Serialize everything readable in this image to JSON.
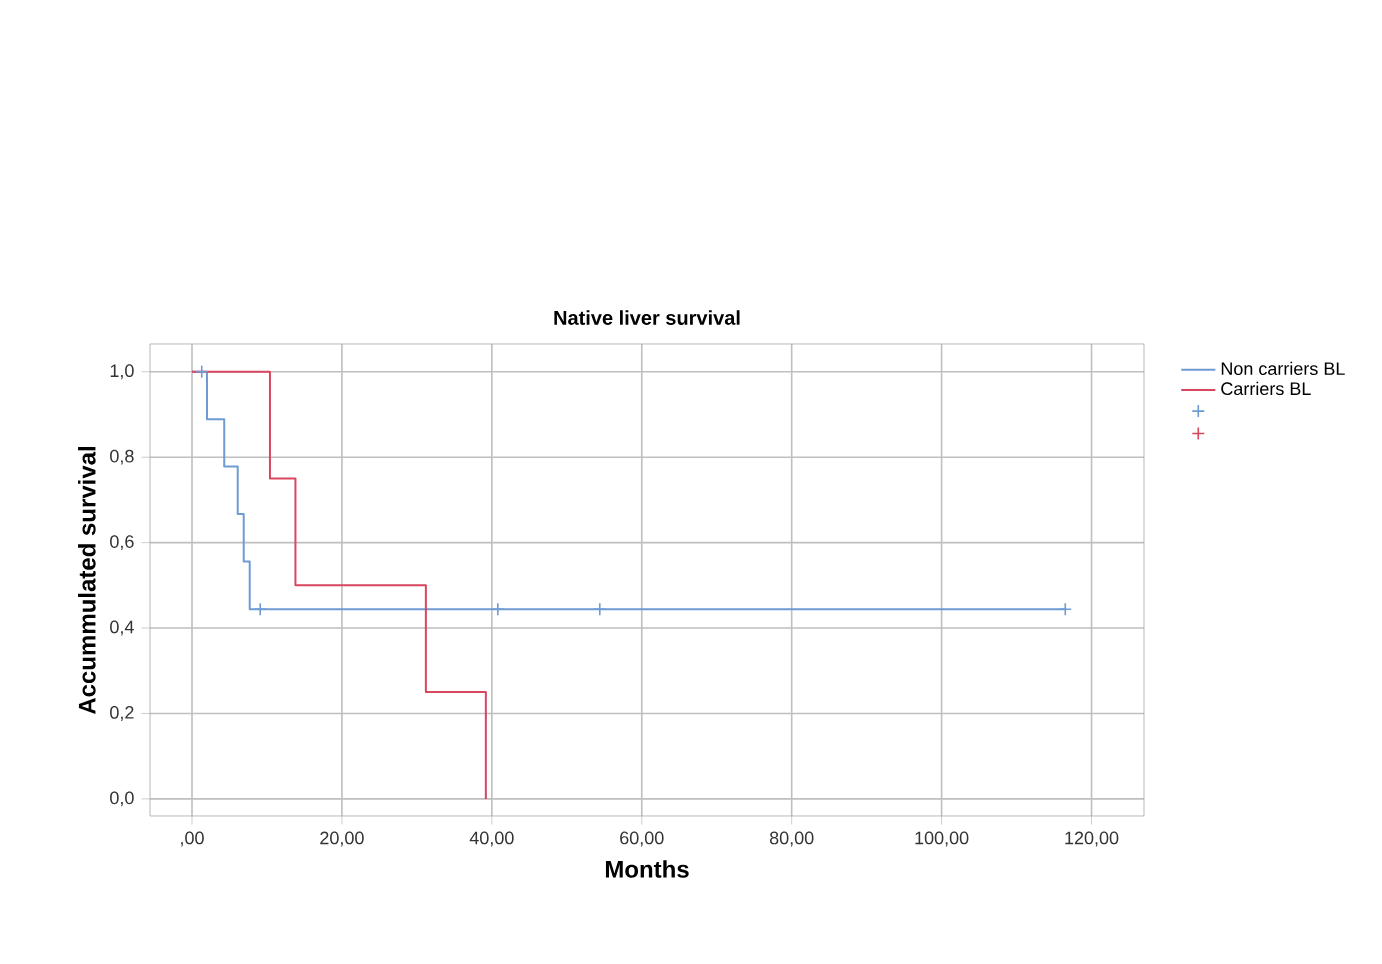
{
  "chart_data": {
    "type": "step",
    "title": "Native liver survival",
    "xlabel": "Months",
    "ylabel": "Accummulated survival",
    "series": [
      {
        "name": "Non carriers BL",
        "color": "#6f9bd3",
        "x": [
          0,
          2,
          4.3,
          6.1,
          6.9,
          7.7,
          116.5
        ],
        "values": [
          1,
          0.889,
          0.778,
          0.667,
          0.556,
          0.444,
          0.444
        ]
      },
      {
        "name": "Carriers BL",
        "color": "#d9465f",
        "x": [
          0,
          10.4,
          13.8,
          31.2,
          39.2
        ],
        "values": [
          1,
          0.75,
          0.5,
          0.25,
          0
        ]
      },
      {
        "type": "scatter",
        "marker": "cross",
        "color": "#6f9bd3",
        "x": [
          1.3,
          9.1,
          40.8,
          54.4,
          116.5
        ],
        "values": [
          1,
          0.444,
          0.444,
          0.444,
          0.444
        ]
      },
      {
        "type": "scatter",
        "marker": "cross",
        "color": "#d9465f"
      }
    ],
    "xlim": [
      -5.6,
      127
    ],
    "ylim": [
      -0.04,
      1.065
    ],
    "xticks": [
      {
        "value": 0,
        "label": ",00"
      },
      {
        "value": 20,
        "label": "20,00"
      },
      {
        "value": 40,
        "label": "40,00"
      },
      {
        "value": 60,
        "label": "60,00"
      },
      {
        "value": 80,
        "label": "80,00"
      },
      {
        "value": 100,
        "label": "100,00"
      },
      {
        "value": 120,
        "label": "120,00"
      }
    ],
    "yticks": [
      {
        "value": 0,
        "label": "0,0"
      },
      {
        "value": 0.2,
        "label": "0,2"
      },
      {
        "value": 0.4,
        "label": "0,4"
      },
      {
        "value": 0.6,
        "label": "0,6"
      },
      {
        "value": 0.8,
        "label": "0,8"
      },
      {
        "value": 1,
        "label": "1,0"
      }
    ],
    "grid": true,
    "legend": "top right"
  }
}
